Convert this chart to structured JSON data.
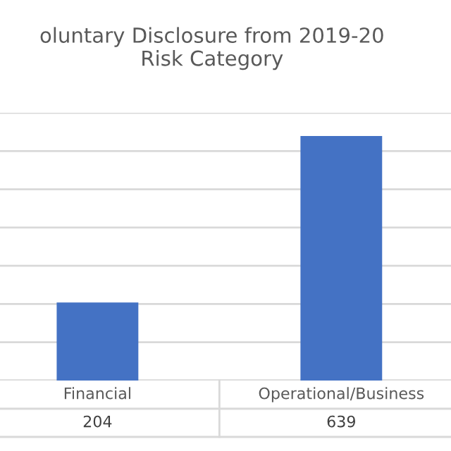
{
  "chart_data": {
    "type": "bar",
    "title": "oluntary Disclosure from 2019-20\nRisk Category",
    "categories": [
      "Financial",
      "Operational/Business"
    ],
    "values": [
      204,
      639
    ],
    "color": "#4472c4",
    "ylim": [
      0,
      700
    ],
    "yticks": [
      {
        "value": 0,
        "label": null
      },
      {
        "value": 100,
        "label": null
      },
      {
        "value": 200,
        "label": null
      },
      {
        "value": 300,
        "label": null
      },
      {
        "value": 400,
        "label": null
      },
      {
        "value": 500,
        "label": null
      },
      {
        "value": 600,
        "label": null
      },
      {
        "value": 700,
        "label": null
      }
    ],
    "grid": "y",
    "tick_labels": "x",
    "data_labels": true
  }
}
